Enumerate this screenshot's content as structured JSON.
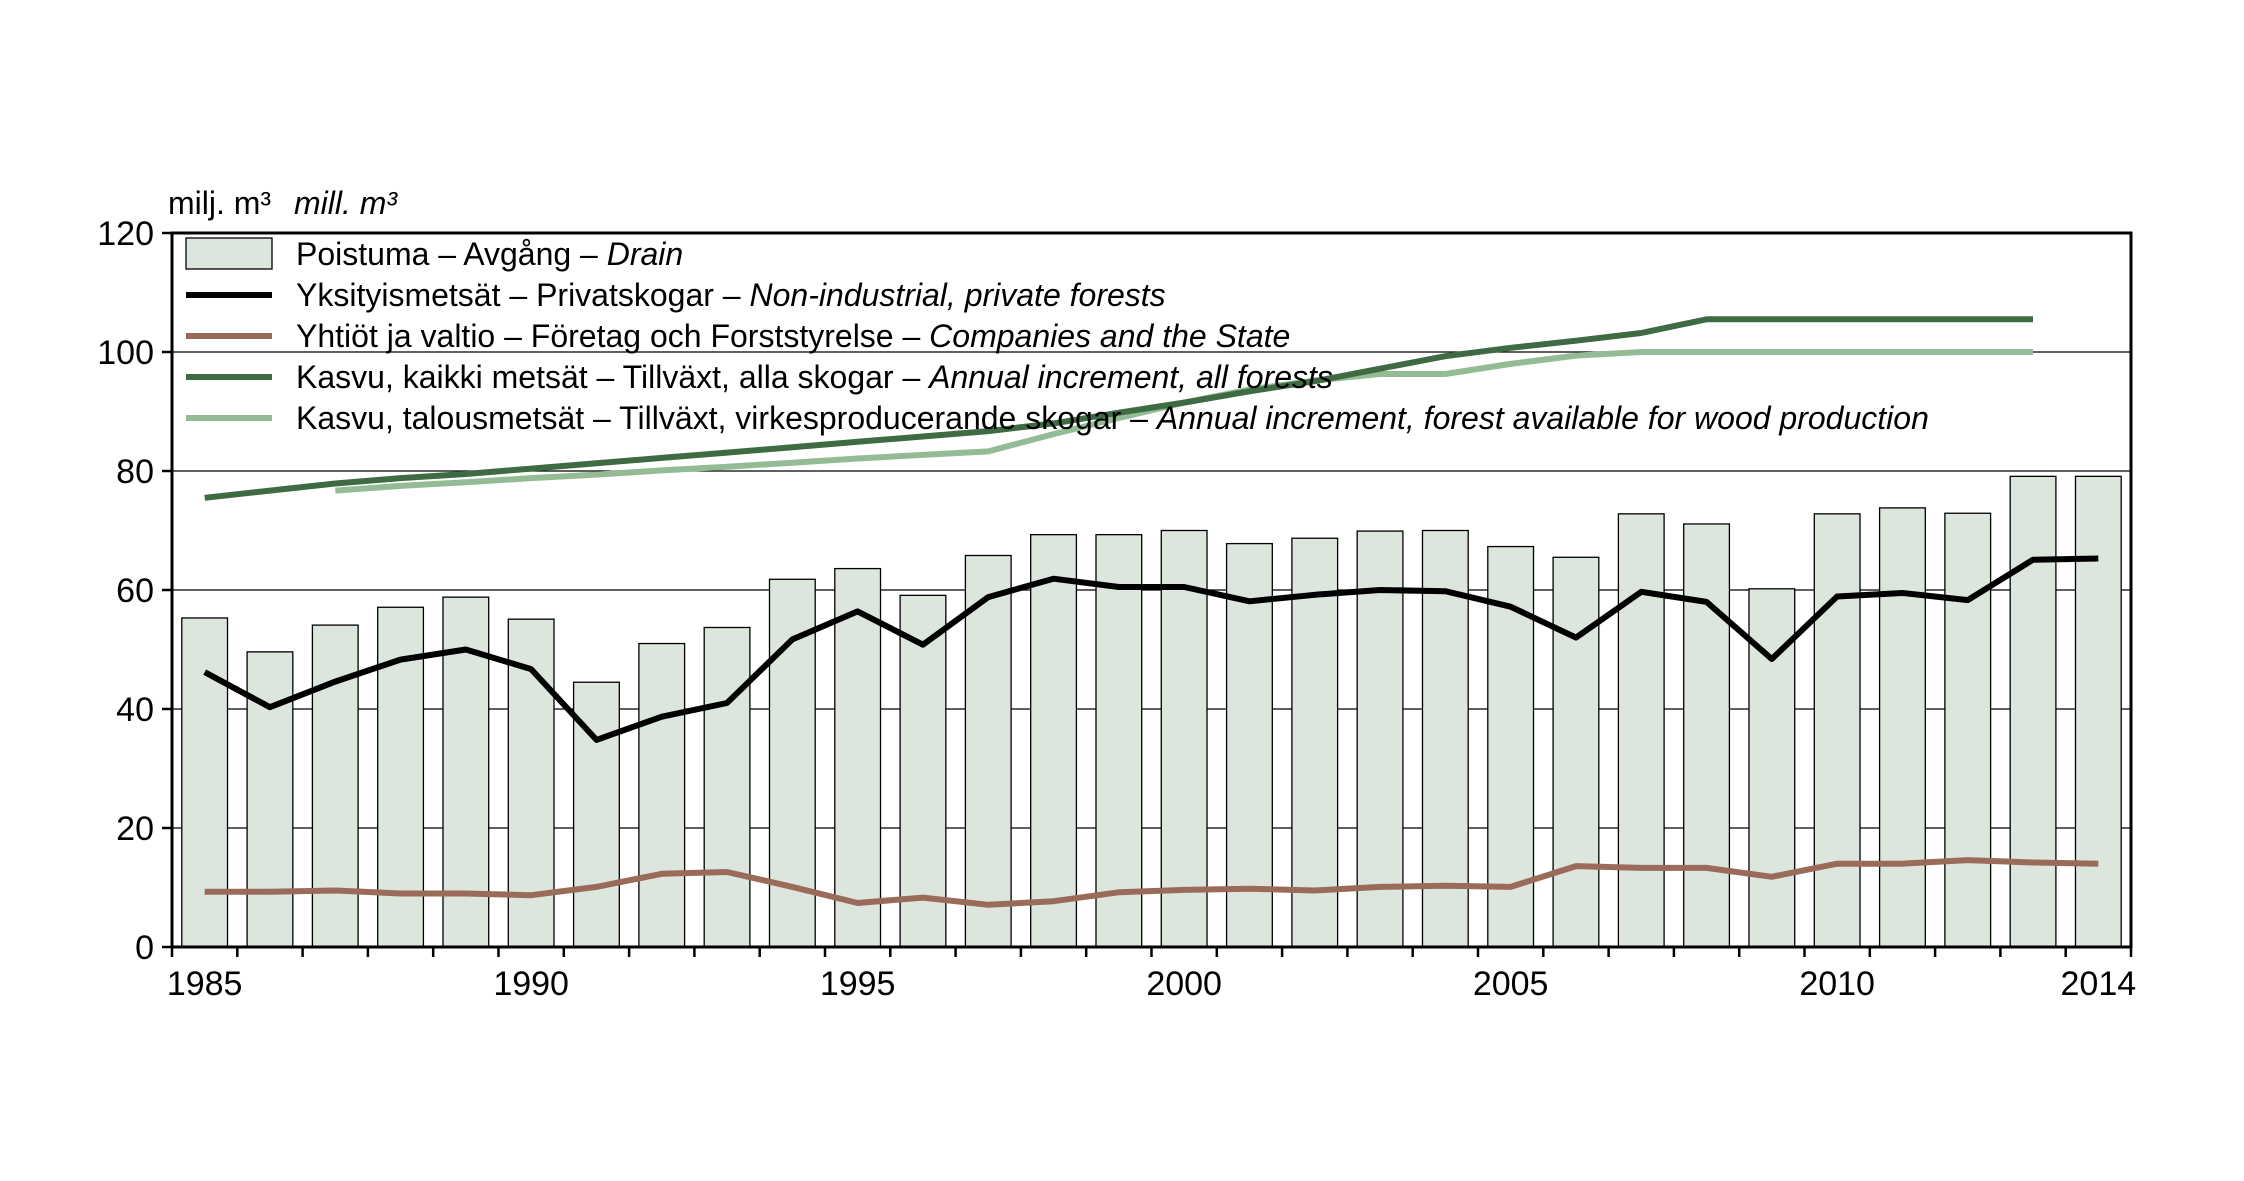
{
  "chart_data": {
    "type": "bar",
    "ylabel": "milj. m³",
    "ylabel_en": "mill. m³",
    "ylim": [
      0,
      120
    ],
    "yticks": [
      0,
      20,
      40,
      60,
      80,
      100,
      120
    ],
    "xticks": [
      1985,
      1990,
      1995,
      2000,
      2005,
      2010,
      2014
    ],
    "grid": "horizontal",
    "legend_position": "top-left",
    "colors": {
      "drain_fill": "#dce6dc",
      "private": "#000000",
      "companies": "#9b6b5a",
      "increment_all": "#3f6b43",
      "increment_wood": "#94bc94"
    },
    "categories": [
      1985,
      1986,
      1987,
      1988,
      1989,
      1990,
      1991,
      1992,
      1993,
      1994,
      1995,
      1996,
      1997,
      1998,
      1999,
      2000,
      2001,
      2002,
      2003,
      2004,
      2005,
      2006,
      2007,
      2008,
      2009,
      2010,
      2011,
      2012,
      2013,
      2014
    ],
    "series": [
      {
        "name": "Poistuma – Avgång – Drain",
        "name_fi_sv": "Poistuma – Avgång – ",
        "name_en": "Drain",
        "kind": "bar",
        "values": [
          55.3,
          49.6,
          54.1,
          57.1,
          58.8,
          55.1,
          44.5,
          51.0,
          53.7,
          61.8,
          63.6,
          59.1,
          65.8,
          69.3,
          69.3,
          70.0,
          67.8,
          68.7,
          69.9,
          70.0,
          67.3,
          65.5,
          72.8,
          71.1,
          60.2,
          72.8,
          73.8,
          72.9,
          79.1,
          79.1
        ]
      },
      {
        "name": "Yksityismetsät – Privatskogar – Non-industrial, private forests",
        "name_fi_sv": "Yksityismetsät – Privatskogar – ",
        "name_en": "Non-industrial, private forests",
        "kind": "line",
        "values": [
          46.2,
          40.3,
          44.6,
          48.3,
          50.0,
          46.7,
          34.8,
          38.7,
          41.0,
          51.7,
          56.4,
          50.8,
          58.8,
          61.9,
          60.5,
          60.5,
          58.1,
          59.2,
          60.0,
          59.8,
          57.2,
          52.0,
          59.7,
          58.0,
          48.4,
          58.9,
          59.5,
          58.3,
          65.1,
          65.3
        ]
      },
      {
        "name": "Yhtiöt ja valtio – Företag och Forststyrelse – Companies and the State",
        "name_fi_sv": "Yhtiöt ja valtio – Företag och Forststyrelse – ",
        "name_en": "Companies and the State",
        "kind": "line",
        "values": [
          9.3,
          9.3,
          9.5,
          9.0,
          9.0,
          8.7,
          10.1,
          12.3,
          12.6,
          10.1,
          7.4,
          8.3,
          7.1,
          7.7,
          9.2,
          9.6,
          9.8,
          9.5,
          10.1,
          10.3,
          10.1,
          13.6,
          13.3,
          13.3,
          11.8,
          14.0,
          14.0,
          14.6,
          14.2,
          14.0
        ]
      },
      {
        "name": "Kasvu, kaikki metsät – Tillväxt, alla skogar – Annual increment, all forests",
        "name_fi_sv": "Kasvu, kaikki metsät – Tillväxt, alla skogar – ",
        "name_en": "Annual increment, all forests",
        "kind": "line",
        "values": [
          75.5,
          76.7,
          77.9,
          78.8,
          79.5,
          80.4,
          81.3,
          82.2,
          83.1,
          84.0,
          84.9,
          85.8,
          86.7,
          88.0,
          89.8,
          91.5,
          93.4,
          95.1,
          97.2,
          99.3,
          100.7,
          101.9,
          103.2,
          105.5,
          105.5,
          105.5,
          105.5,
          105.5,
          105.5,
          null
        ]
      },
      {
        "name": "Kasvu, talousmetsät – Tillväxt, virkesproducerande skogar – Annual increment, forest available for wood production",
        "name_fi_sv": "Kasvu, talousmetsät – Tillväxt, virkesproducerande skogar – ",
        "name_en": "Annual increment, forest available for wood production",
        "kind": "line",
        "values": [
          null,
          null,
          76.7,
          77.5,
          78.1,
          78.8,
          79.4,
          80.1,
          80.7,
          81.4,
          82.1,
          82.7,
          83.3,
          86.2,
          88.9,
          91.5,
          93.7,
          95.2,
          96.3,
          96.3,
          98.0,
          99.4,
          100.0,
          100.0,
          100.0,
          100.0,
          100.0,
          100.0,
          100.0,
          null
        ]
      }
    ]
  }
}
